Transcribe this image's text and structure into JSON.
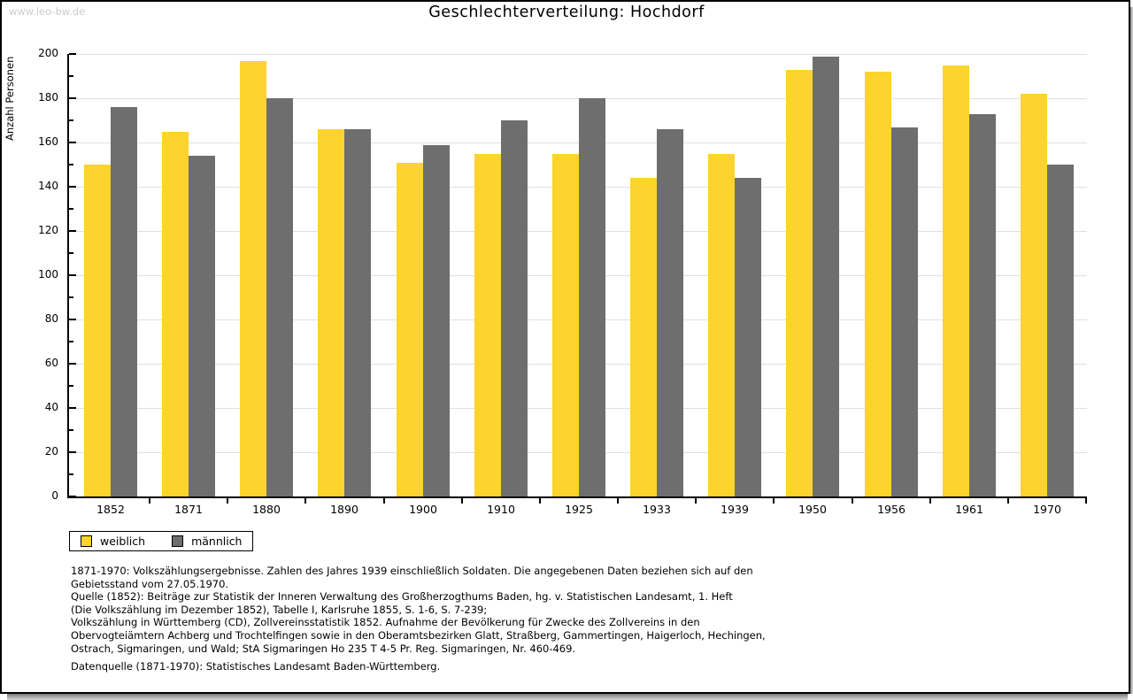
{
  "watermark": "www.leo-bw.de",
  "title": "Geschlechterverteilung: Hochdorf",
  "chart_data": {
    "type": "bar",
    "title": "Geschlechterverteilung: Hochdorf",
    "xlabel": "",
    "ylabel": "Anzahl Personen",
    "ylim": [
      0,
      200
    ],
    "ytick_step": 20,
    "ytick_minor_step": 10,
    "grid": true,
    "legend_position": "bottom-left",
    "categories": [
      "1852",
      "1871",
      "1880",
      "1890",
      "1900",
      "1910",
      "1925",
      "1933",
      "1939",
      "1950",
      "1956",
      "1961",
      "1970"
    ],
    "series": [
      {
        "name": "weiblich",
        "color": "#fdd32d",
        "values": [
          150,
          165,
          197,
          166,
          151,
          155,
          155,
          144,
          155,
          193,
          192,
          195,
          182
        ]
      },
      {
        "name": "männlich",
        "color": "#6e6e6e",
        "values": [
          176,
          154,
          180,
          166,
          159,
          170,
          180,
          166,
          144,
          199,
          167,
          173,
          150
        ]
      }
    ]
  },
  "legend": {
    "items": [
      {
        "label": "weiblich",
        "color": "#fdd32d"
      },
      {
        "label": "männlich",
        "color": "#6e6e6e"
      }
    ]
  },
  "footnotes": [
    "1871-1970: Volkszählungsergebnisse. Zahlen des Jahres 1939 einschließlich Soldaten. Die angegebenen Daten beziehen sich auf den",
    "Gebietsstand vom 27.05.1970.",
    "Quelle (1852): Beiträge zur Statistik der Inneren Verwaltung des Großherzogthums Baden, hg. v. Statistischen Landesamt, 1. Heft",
    "(Die Volkszählung im Dezember 1852), Tabelle I, Karlsruhe 1855, S. 1-6, S. 7-239;",
    "Volkszählung in Württemberg (CD), Zollvereinsstatistik 1852. Aufnahme der Bevölkerung für Zwecke des Zollvereins in den",
    "Obervogteiämtern Achberg und Trochtelfingen sowie in den Oberamtsbezirken Glatt, Straßberg, Gammertingen, Haigerloch, Hechingen,",
    "Ostrach, Sigmaringen, und Wald; StA Sigmaringen Ho 235 T 4-5 Pr. Reg. Sigmaringen, Nr. 460-469."
  ],
  "datasource": "Datenquelle (1871-1970): Statistisches Landesamt Baden-Württemberg.",
  "colors": {
    "grid": "#e0e0e0",
    "axis": "#000000",
    "watermark": "#cccccc",
    "background": "#ffffff"
  }
}
